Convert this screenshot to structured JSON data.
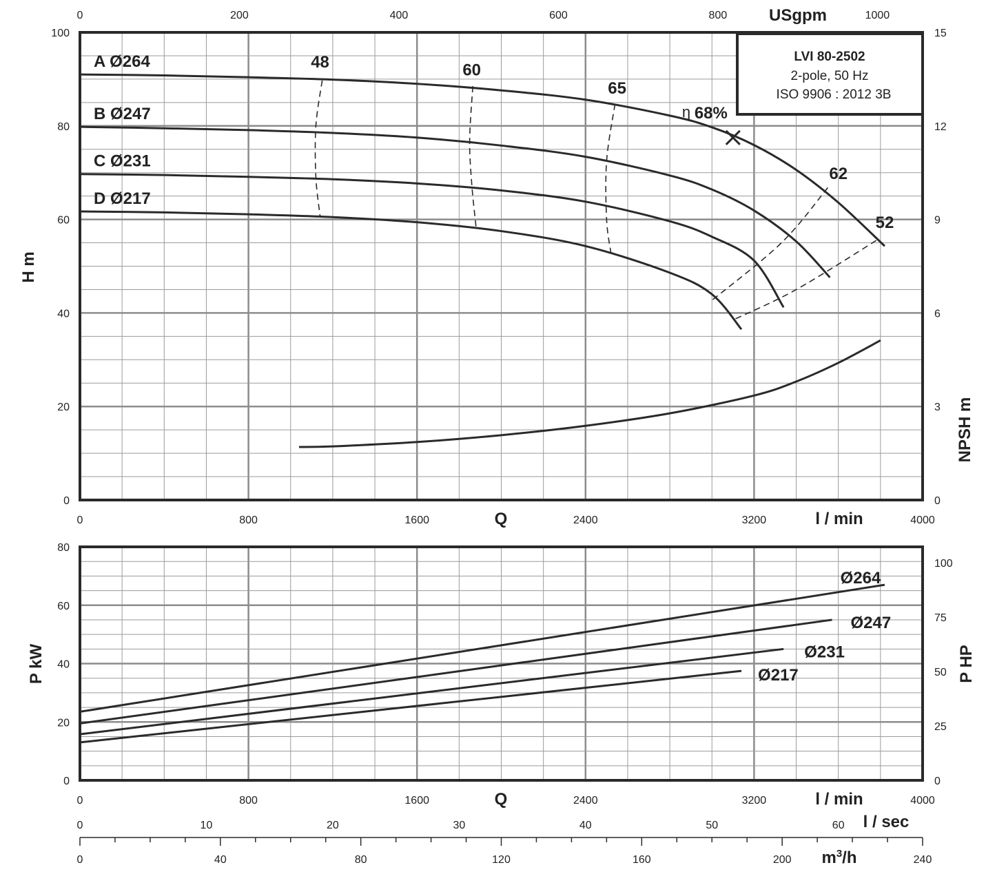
{
  "chart_data": [
    {
      "type": "line",
      "title": "",
      "info_box": {
        "model": "LVI 80-2502",
        "line2": "2-pole, 50 Hz",
        "line3": "ISO 9906 : 2012 3B"
      },
      "xlabel": "Q",
      "x_unit": "l / min",
      "xlim": [
        0,
        4000
      ],
      "x_ticks": [
        0,
        800,
        1600,
        2400,
        3200,
        4000
      ],
      "top_axis": {
        "unit": "USgpm",
        "ticks": [
          0,
          200,
          400,
          600,
          800,
          1000
        ]
      },
      "ylabel": "H m",
      "ylim": [
        0,
        100
      ],
      "y_ticks": [
        0,
        20,
        40,
        60,
        80,
        100
      ],
      "y2label": "NPSH m",
      "y2lim": [
        0,
        15
      ],
      "y2_ticks": [
        0,
        3,
        6,
        9,
        12,
        15
      ],
      "grid": true,
      "series": [
        {
          "name": "A Ø264",
          "x": [
            0,
            400,
            800,
            1200,
            1600,
            2000,
            2400,
            2800,
            3000,
            3200,
            3400,
            3600,
            3820
          ],
          "y": [
            91,
            90.8,
            90.4,
            89.9,
            89,
            87.6,
            85.6,
            82.2,
            79.7,
            75.9,
            70.6,
            63.6,
            54.3
          ]
        },
        {
          "name": "B Ø247",
          "x": [
            0,
            400,
            800,
            1200,
            1600,
            2000,
            2400,
            2800,
            3000,
            3200,
            3400,
            3560
          ],
          "y": [
            79.8,
            79.5,
            79.1,
            78.5,
            77.5,
            75.8,
            73.4,
            69.4,
            66.4,
            61.9,
            55.3,
            47.6
          ]
        },
        {
          "name": "C Ø231",
          "x": [
            0,
            400,
            800,
            1200,
            1600,
            2000,
            2400,
            2800,
            3000,
            3200,
            3340
          ],
          "y": [
            69.7,
            69.5,
            69.1,
            68.6,
            67.7,
            66.2,
            63.8,
            59.6,
            56.3,
            51.2,
            41.2
          ]
        },
        {
          "name": "D Ø217",
          "x": [
            0,
            400,
            800,
            1200,
            1600,
            2000,
            2400,
            2800,
            3000,
            3140
          ],
          "y": [
            61.7,
            61.5,
            61.1,
            60.5,
            59.4,
            57.5,
            54.3,
            48.6,
            44.0,
            36.5
          ]
        },
        {
          "name": "NPSH",
          "axis": "y2",
          "x": [
            1040,
            1200,
            1600,
            2000,
            2400,
            2800,
            3200,
            3400,
            3600,
            3800
          ],
          "y": [
            1.7,
            1.72,
            1.86,
            2.08,
            2.38,
            2.78,
            3.35,
            3.8,
            4.4,
            5.12
          ]
        }
      ],
      "efficiency_lines": [
        {
          "label": "48",
          "x": [
            1150,
            1120,
            1120,
            1140
          ],
          "y": [
            89.7,
            80,
            69,
            60.7
          ]
        },
        {
          "label": "60",
          "x": [
            1865,
            1850,
            1860,
            1880
          ],
          "y": [
            88.5,
            77,
            67.5,
            58.5
          ]
        },
        {
          "label": "65",
          "x": [
            2540,
            2500,
            2500,
            2520
          ],
          "y": [
            84.7,
            72.5,
            60,
            53
          ]
        },
        {
          "label": "62",
          "x": [
            3550,
            3330,
            3000
          ],
          "y": [
            66.8,
            55,
            42.7
          ]
        },
        {
          "label": "52",
          "x": [
            3780,
            3400,
            3100
          ],
          "y": [
            55.5,
            45,
            38.5
          ]
        }
      ],
      "efficiency_labels": [
        {
          "text": "48",
          "x": 1140,
          "y": 92.5
        },
        {
          "text": "60",
          "x": 1860,
          "y": 90.8
        },
        {
          "text": "65",
          "x": 2550,
          "y": 86.9
        },
        {
          "text": "62",
          "x": 3600,
          "y": 68.6
        },
        {
          "text": "52",
          "x": 3820,
          "y": 58.2
        }
      ],
      "best_point": {
        "label_symbol": "η",
        "label": "68%",
        "x": 3100,
        "y": 77.5
      }
    },
    {
      "type": "line",
      "title": "",
      "xlabel": "Q",
      "x_unit": "l / min",
      "xlim": [
        0,
        4000
      ],
      "x_ticks": [
        0,
        800,
        1600,
        2400,
        3200,
        4000
      ],
      "ylabel": "P kW",
      "ylim": [
        0,
        80
      ],
      "y_ticks": [
        0,
        20,
        40,
        60,
        80
      ],
      "y2label": "P HP",
      "y2lim": [
        0,
        107.3
      ],
      "y2_ticks": [
        0,
        25,
        50,
        75,
        100
      ],
      "grid": true,
      "series": [
        {
          "name": "Ø264",
          "x": [
            0,
            3820
          ],
          "y": [
            23.5,
            67
          ]
        },
        {
          "name": "Ø247",
          "x": [
            0,
            3570
          ],
          "y": [
            19.5,
            55
          ]
        },
        {
          "name": "Ø231",
          "x": [
            0,
            3340
          ],
          "y": [
            15.8,
            45
          ]
        },
        {
          "name": "Ø217",
          "x": [
            0,
            3140
          ],
          "y": [
            13,
            37.5
          ]
        }
      ],
      "bottom_axes": [
        {
          "unit": "l / sec",
          "ticks": [
            0,
            10,
            20,
            30,
            40,
            50,
            60
          ]
        },
        {
          "unit": "m3/h",
          "ticks": [
            0,
            40,
            80,
            120,
            160,
            200,
            240
          ]
        }
      ]
    }
  ]
}
